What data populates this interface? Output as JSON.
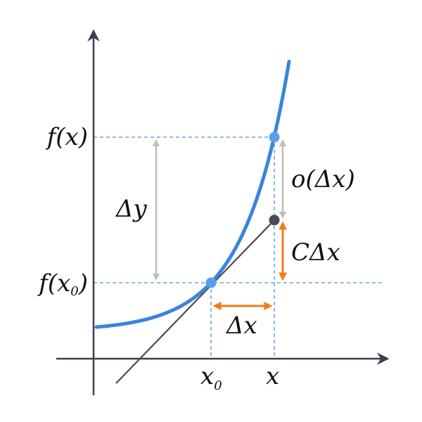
{
  "labels": {
    "fx": "f(x)",
    "fx0": {
      "base": "f(x",
      "sub": "0",
      "close": ")"
    },
    "delta_y": "Δy",
    "o_delta_x": "o(Δx)",
    "c_delta_x": "CΔx",
    "delta_x": "Δx",
    "x0": {
      "base": "x",
      "sub": "0"
    },
    "x": "x"
  }
}
